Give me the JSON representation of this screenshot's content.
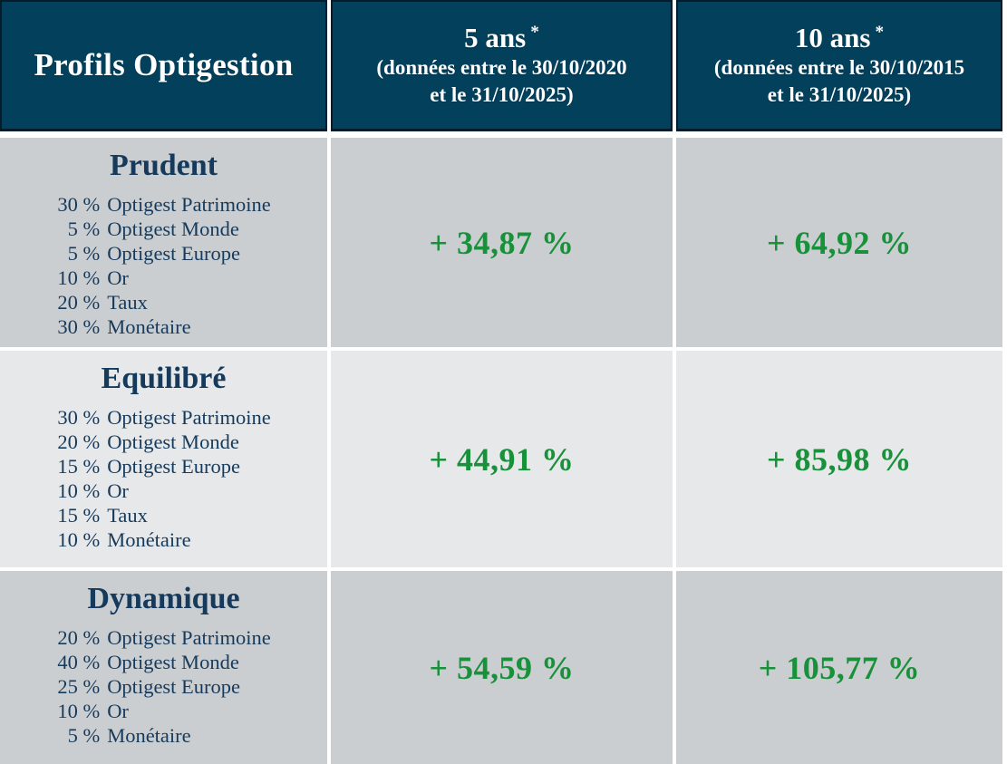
{
  "colors": {
    "header_bg": "#03405c",
    "header_border": "#061c2b",
    "header_text": "#ffffff",
    "navy": "#163a5c",
    "green": "#18913a",
    "row_gray": "#cbced1",
    "row_light": "#e7e8ea",
    "page_bg": "#ffffff"
  },
  "table": {
    "header": {
      "profils_label": "Profils Optigestion",
      "col_5y": {
        "title": "5 ans",
        "asterisk": "*",
        "subtitle_line1": "(données entre le 30/10/2020",
        "subtitle_line2": "et le 31/10/2025)"
      },
      "col_10y": {
        "title": "10 ans",
        "asterisk": "*",
        "subtitle_line1": "(données entre le 30/10/2015",
        "subtitle_line2": "et le 31/10/2025)"
      }
    },
    "rows": [
      {
        "profile": "Prudent",
        "allocations": [
          {
            "pct": "30 %",
            "fund": "Optigest Patrimoine"
          },
          {
            "pct": "5 %",
            "fund": "Optigest Monde"
          },
          {
            "pct": "5 %",
            "fund": "Optigest Europe"
          },
          {
            "pct": "10 %",
            "fund": "Or"
          },
          {
            "pct": "20 %",
            "fund": "Taux"
          },
          {
            "pct": "30 %",
            "fund": "Monétaire"
          }
        ],
        "perf_5y": "+ 34,87 %",
        "perf_10y": "+ 64,92 %"
      },
      {
        "profile": "Equilibré",
        "allocations": [
          {
            "pct": "30 %",
            "fund": "Optigest Patrimoine"
          },
          {
            "pct": "20 %",
            "fund": "Optigest Monde"
          },
          {
            "pct": "15 %",
            "fund": "Optigest Europe"
          },
          {
            "pct": "10 %",
            "fund": "Or"
          },
          {
            "pct": "15 %",
            "fund": "Taux"
          },
          {
            "pct": "10 %",
            "fund": "Monétaire"
          }
        ],
        "perf_5y": "+ 44,91 %",
        "perf_10y": "+ 85,98 %"
      },
      {
        "profile": "Dynamique",
        "allocations": [
          {
            "pct": "20 %",
            "fund": "Optigest Patrimoine"
          },
          {
            "pct": "40 %",
            "fund": "Optigest Monde"
          },
          {
            "pct": "25 %",
            "fund": "Optigest Europe"
          },
          {
            "pct": "10 %",
            "fund": "Or"
          },
          {
            "pct": "5 %",
            "fund": "Monétaire"
          }
        ],
        "perf_5y": "+ 54,59 %",
        "perf_10y": "+ 105,77 %"
      }
    ]
  },
  "chart_data": {
    "type": "table",
    "title": "Profils Optigestion",
    "columns": [
      "Profils Optigestion",
      "5 ans * (données entre le 30/10/2020 et le 31/10/2025)",
      "10 ans * (données entre le 30/10/2015 et le 31/10/2025)"
    ],
    "rows": [
      {
        "profil": "Prudent",
        "composition": [
          "30 % Optigest Patrimoine",
          "5 % Optigest Monde",
          "5 % Optigest Europe",
          "10 % Or",
          "20 % Taux",
          "30 % Monétaire"
        ],
        "perf_5_ans_pct": 34.87,
        "perf_10_ans_pct": 64.92
      },
      {
        "profil": "Equilibré",
        "composition": [
          "30 % Optigest Patrimoine",
          "20 % Optigest Monde",
          "15 % Optigest Europe",
          "10 % Or",
          "15 % Taux",
          "10 % Monétaire"
        ],
        "perf_5_ans_pct": 44.91,
        "perf_10_ans_pct": 85.98
      },
      {
        "profil": "Dynamique",
        "composition": [
          "20 % Optigest Patrimoine",
          "40 % Optigest Monde",
          "25 % Optigest Europe",
          "10 % Or",
          "5 % Monétaire"
        ],
        "perf_5_ans_pct": 54.59,
        "perf_10_ans_pct": 105.77
      }
    ]
  }
}
